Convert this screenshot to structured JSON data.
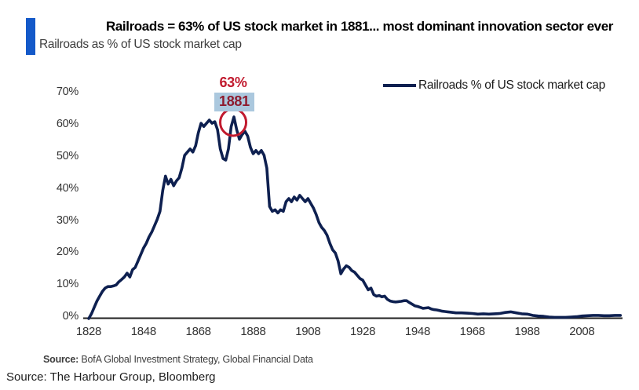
{
  "header": {
    "title": "Railroads = 63% of US stock market in 1881... most dominant innovation sector ever",
    "subtitle": "Railroads as % of US stock market cap"
  },
  "legend": {
    "label": "Railroads % of US stock market cap"
  },
  "annotation": {
    "peak_value_label": "63%",
    "peak_year_label": "1881"
  },
  "sources": {
    "chart_source_label": "Source:",
    "chart_source_text": " BofA Global Investment Strategy, Global Financial Data",
    "page_source_text": "Source: The Harbour Group, Bloomberg"
  },
  "colors": {
    "line": "#0e2050",
    "accent_bar": "#1459c9",
    "annotation_red": "#c11a2e",
    "annotation_year_red": "#8e1b2e",
    "annotation_year_bg": "#abc8de",
    "axis": "#1f1f1f"
  },
  "chart_data": {
    "type": "line",
    "title": "Railroads as % of US stock market cap",
    "xlabel": "",
    "ylabel": "",
    "grid": false,
    "legend_position": "top-right",
    "xlim": [
      1828,
      2022
    ],
    "ylim": [
      0,
      70
    ],
    "y_ticks": [
      {
        "v": 0,
        "label": "0%"
      },
      {
        "v": 10,
        "label": "10%"
      },
      {
        "v": 20,
        "label": "20%"
      },
      {
        "v": 30,
        "label": "30%"
      },
      {
        "v": 40,
        "label": "40%"
      },
      {
        "v": 50,
        "label": "50%"
      },
      {
        "v": 60,
        "label": "60%"
      },
      {
        "v": 70,
        "label": "70%"
      }
    ],
    "x_ticks": [
      1828,
      1848,
      1868,
      1888,
      1908,
      1928,
      1948,
      1968,
      1988,
      2008
    ],
    "annotations": [
      {
        "year": 1881,
        "value": 63,
        "labels": [
          "63%",
          "1881"
        ],
        "marker": "red-circle"
      }
    ],
    "series": [
      {
        "name": "Railroads % of US stock market cap",
        "color": "#0e2050",
        "points": [
          [
            1828,
            0
          ],
          [
            1829,
            1.5
          ],
          [
            1830,
            3.5
          ],
          [
            1831,
            5.5
          ],
          [
            1832,
            7
          ],
          [
            1833,
            8.5
          ],
          [
            1834,
            9.5
          ],
          [
            1835,
            10
          ],
          [
            1836,
            10
          ],
          [
            1837,
            10.2
          ],
          [
            1838,
            10.5
          ],
          [
            1839,
            11.5
          ],
          [
            1840,
            12.2
          ],
          [
            1841,
            13
          ],
          [
            1842,
            14.2
          ],
          [
            1843,
            13
          ],
          [
            1844,
            15.3
          ],
          [
            1845,
            16
          ],
          [
            1846,
            18
          ],
          [
            1847,
            20
          ],
          [
            1848,
            22
          ],
          [
            1849,
            23.5
          ],
          [
            1850,
            25.5
          ],
          [
            1851,
            27
          ],
          [
            1852,
            29
          ],
          [
            1853,
            31
          ],
          [
            1854,
            33.5
          ],
          [
            1855,
            40
          ],
          [
            1856,
            44.5
          ],
          [
            1857,
            42
          ],
          [
            1858,
            43.5
          ],
          [
            1859,
            41.5
          ],
          [
            1860,
            43
          ],
          [
            1861,
            44
          ],
          [
            1862,
            47
          ],
          [
            1863,
            51
          ],
          [
            1864,
            52
          ],
          [
            1865,
            53
          ],
          [
            1866,
            52
          ],
          [
            1867,
            54
          ],
          [
            1868,
            58
          ],
          [
            1869,
            61
          ],
          [
            1870,
            60
          ],
          [
            1871,
            61
          ],
          [
            1872,
            62
          ],
          [
            1873,
            61
          ],
          [
            1874,
            61.5
          ],
          [
            1875,
            59
          ],
          [
            1876,
            53
          ],
          [
            1877,
            50
          ],
          [
            1878,
            49.5
          ],
          [
            1879,
            53
          ],
          [
            1880,
            60
          ],
          [
            1881,
            63
          ],
          [
            1882,
            59
          ],
          [
            1883,
            56
          ],
          [
            1884,
            57.5
          ],
          [
            1885,
            58.5
          ],
          [
            1886,
            57
          ],
          [
            1887,
            53.5
          ],
          [
            1888,
            51.5
          ],
          [
            1889,
            52.5
          ],
          [
            1890,
            51.5
          ],
          [
            1891,
            52.5
          ],
          [
            1892,
            51
          ],
          [
            1893,
            47
          ],
          [
            1894,
            35
          ],
          [
            1895,
            33.5
          ],
          [
            1896,
            34
          ],
          [
            1897,
            33
          ],
          [
            1898,
            34
          ],
          [
            1899,
            33.5
          ],
          [
            1900,
            36.5
          ],
          [
            1901,
            37.5
          ],
          [
            1902,
            36.5
          ],
          [
            1903,
            38
          ],
          [
            1904,
            37
          ],
          [
            1905,
            38.5
          ],
          [
            1906,
            37.5
          ],
          [
            1907,
            36.5
          ],
          [
            1908,
            37.5
          ],
          [
            1909,
            36
          ],
          [
            1910,
            34.5
          ],
          [
            1911,
            32.5
          ],
          [
            1912,
            30
          ],
          [
            1913,
            28.5
          ],
          [
            1914,
            27.5
          ],
          [
            1915,
            26
          ],
          [
            1916,
            23.5
          ],
          [
            1917,
            21.5
          ],
          [
            1918,
            20.5
          ],
          [
            1919,
            18
          ],
          [
            1920,
            14
          ],
          [
            1921,
            15.5
          ],
          [
            1922,
            16.5
          ],
          [
            1923,
            16
          ],
          [
            1924,
            15
          ],
          [
            1925,
            14.5
          ],
          [
            1926,
            13.5
          ],
          [
            1927,
            12.5
          ],
          [
            1928,
            12
          ],
          [
            1929,
            10.5
          ],
          [
            1930,
            9
          ],
          [
            1931,
            9.5
          ],
          [
            1932,
            7.5
          ],
          [
            1933,
            7
          ],
          [
            1934,
            7.2
          ],
          [
            1935,
            6.8
          ],
          [
            1936,
            7
          ],
          [
            1937,
            6
          ],
          [
            1938,
            5.5
          ],
          [
            1939,
            5.3
          ],
          [
            1940,
            5.2
          ],
          [
            1941,
            5.3
          ],
          [
            1942,
            5.4
          ],
          [
            1943,
            5.6
          ],
          [
            1944,
            5.6
          ],
          [
            1945,
            5
          ],
          [
            1946,
            4.5
          ],
          [
            1947,
            4
          ],
          [
            1948,
            3.8
          ],
          [
            1949,
            3.5
          ],
          [
            1950,
            3.2
          ],
          [
            1951,
            3.3
          ],
          [
            1952,
            3.4
          ],
          [
            1953,
            3
          ],
          [
            1954,
            2.8
          ],
          [
            1955,
            2.7
          ],
          [
            1956,
            2.5
          ],
          [
            1957,
            2.3
          ],
          [
            1958,
            2.2
          ],
          [
            1959,
            2.1
          ],
          [
            1960,
            2
          ],
          [
            1962,
            1.8
          ],
          [
            1964,
            1.8
          ],
          [
            1966,
            1.7
          ],
          [
            1968,
            1.6
          ],
          [
            1970,
            1.4
          ],
          [
            1972,
            1.5
          ],
          [
            1974,
            1.4
          ],
          [
            1976,
            1.5
          ],
          [
            1978,
            1.6
          ],
          [
            1980,
            1.9
          ],
          [
            1982,
            2.1
          ],
          [
            1984,
            1.8
          ],
          [
            1986,
            1.5
          ],
          [
            1988,
            1.4
          ],
          [
            1990,
            1
          ],
          [
            1992,
            0.8
          ],
          [
            1994,
            0.7
          ],
          [
            1996,
            0.5
          ],
          [
            1998,
            0.4
          ],
          [
            2000,
            0.4
          ],
          [
            2002,
            0.4
          ],
          [
            2004,
            0.5
          ],
          [
            2006,
            0.6
          ],
          [
            2008,
            0.8
          ],
          [
            2010,
            0.9
          ],
          [
            2012,
            1
          ],
          [
            2014,
            1
          ],
          [
            2016,
            0.9
          ],
          [
            2018,
            0.9
          ],
          [
            2020,
            1
          ],
          [
            2022,
            1
          ]
        ]
      }
    ]
  }
}
